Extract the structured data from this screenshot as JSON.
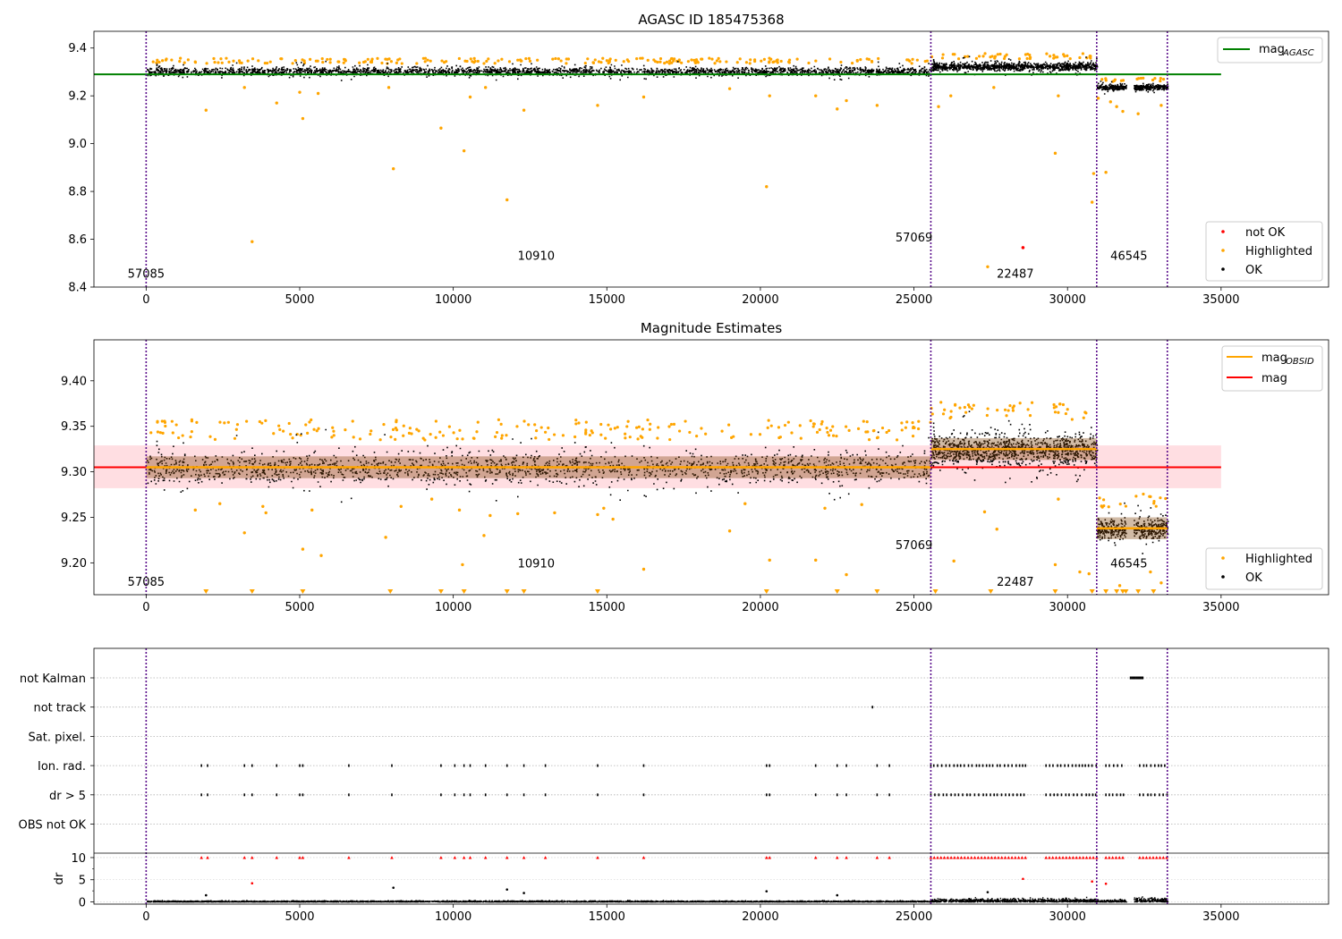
{
  "chart_data": [
    {
      "type": "scatter",
      "title": "AGASC ID 185475368",
      "xlim": [
        -1700,
        38500
      ],
      "ylim": [
        8.4,
        9.47
      ],
      "xticks": [
        0,
        5000,
        10000,
        15000,
        20000,
        25000,
        30000,
        35000
      ],
      "yticks": [
        8.4,
        8.6,
        8.8,
        9.0,
        9.2,
        9.4
      ],
      "ytick_labels": [
        "8.4",
        "8.6",
        "8.8",
        "9.0",
        "9.2",
        "9.4"
      ],
      "obsid_boundaries": [
        0,
        25550,
        30950,
        33250
      ],
      "obsid_annotations": [
        {
          "x": 0,
          "y": 8.44,
          "label": "57085"
        },
        {
          "x": 12700,
          "y": 8.515,
          "label": "10910"
        },
        {
          "x": 25000,
          "y": 8.59,
          "label": "57069"
        },
        {
          "x": 28300,
          "y": 8.44,
          "label": "22487"
        },
        {
          "x": 32000,
          "y": 8.515,
          "label": "46545"
        }
      ],
      "reference_line": {
        "name": "mag_AGASC",
        "y": 9.29,
        "x": [
          -1700,
          35000
        ]
      },
      "series": [
        {
          "name": "not OK",
          "points": [
            [
              28550,
              8.565
            ]
          ]
        },
        {
          "name": "Highlighted",
          "points": [
            [
              1950,
              9.14
            ],
            [
              3200,
              9.235
            ],
            [
              3450,
              8.59
            ],
            [
              4250,
              9.17
            ],
            [
              5000,
              9.215
            ],
            [
              5100,
              9.105
            ],
            [
              5600,
              9.21
            ],
            [
              7900,
              9.235
            ],
            [
              8050,
              8.895
            ],
            [
              9600,
              9.065
            ],
            [
              10350,
              8.97
            ],
            [
              10550,
              9.195
            ],
            [
              11050,
              9.235
            ],
            [
              11750,
              8.765
            ],
            [
              12300,
              9.14
            ],
            [
              14700,
              9.16
            ],
            [
              16200,
              9.195
            ],
            [
              19000,
              9.23
            ],
            [
              20200,
              8.82
            ],
            [
              20300,
              9.2
            ],
            [
              21800,
              9.2
            ],
            [
              22500,
              9.145
            ],
            [
              22800,
              9.18
            ],
            [
              23800,
              9.16
            ],
            [
              25800,
              9.155
            ],
            [
              26200,
              9.2
            ],
            [
              27400,
              8.485
            ],
            [
              27600,
              9.235
            ],
            [
              29600,
              8.96
            ],
            [
              29700,
              9.2
            ],
            [
              30800,
              8.755
            ],
            [
              30850,
              8.875
            ],
            [
              31000,
              9.19
            ],
            [
              31250,
              8.88
            ],
            [
              31400,
              9.175
            ],
            [
              31600,
              9.155
            ],
            [
              31800,
              9.135
            ],
            [
              32300,
              9.125
            ],
            [
              33050,
              9.16
            ]
          ]
        },
        {
          "name": "OK",
          "segments": [
            {
              "x": [
                0,
                25550
              ],
              "y_center": 9.305,
              "y_spread": 0.025
            },
            {
              "x": [
                25550,
                30950
              ],
              "y_center": 9.325,
              "y_spread": 0.025
            },
            {
              "x": [
                30950,
                31900
              ],
              "y_center": 9.238,
              "y_spread": 0.018
            },
            {
              "x": [
                32150,
                33250
              ],
              "y_center": 9.238,
              "y_spread": 0.018
            }
          ]
        }
      ],
      "legend_lines": [
        {
          "name": "mag",
          "sub": "AGASC",
          "color": "#008000"
        }
      ],
      "legend_points": [
        {
          "name": "not OK",
          "color": "#ff0000"
        },
        {
          "name": "Highlighted",
          "color": "#ffa500"
        },
        {
          "name": "OK",
          "color": "#000000"
        }
      ]
    },
    {
      "type": "scatter",
      "title": "Magnitude Estimates",
      "xlim": [
        -1700,
        38500
      ],
      "ylim": [
        9.165,
        9.445
      ],
      "xticks": [
        0,
        5000,
        10000,
        15000,
        20000,
        25000,
        30000,
        35000
      ],
      "yticks": [
        9.2,
        9.25,
        9.3,
        9.35,
        9.4
      ],
      "ytick_labels": [
        "9.20",
        "9.25",
        "9.30",
        "9.35",
        "9.40"
      ],
      "obsid_boundaries": [
        0,
        25550,
        30950,
        33250
      ],
      "obsid_annotations": [
        {
          "x": 0,
          "y": 9.175,
          "label": "57085"
        },
        {
          "x": 12700,
          "y": 9.195,
          "label": "10910"
        },
        {
          "x": 25000,
          "y": 9.215,
          "label": "57069"
        },
        {
          "x": 28300,
          "y": 9.175,
          "label": "22487"
        },
        {
          "x": 32000,
          "y": 9.195,
          "label": "46545"
        }
      ],
      "mag_line": {
        "name": "mag",
        "y": 9.305,
        "band": [
          9.282,
          9.329
        ],
        "x": [
          -1700,
          35000
        ]
      },
      "obsid_mags": [
        {
          "x": [
            0,
            25550
          ],
          "y": 9.305
        },
        {
          "x": [
            25550,
            30950
          ],
          "y": 9.325
        },
        {
          "x": [
            30950,
            33250
          ],
          "y": 9.238
        }
      ],
      "series": [
        {
          "name": "Highlighted",
          "points": [
            [
              1600,
              9.258
            ],
            [
              2400,
              9.265
            ],
            [
              3200,
              9.233
            ],
            [
              3800,
              9.262
            ],
            [
              3900,
              9.255
            ],
            [
              5100,
              9.215
            ],
            [
              5400,
              9.258
            ],
            [
              5700,
              9.208
            ],
            [
              7800,
              9.228
            ],
            [
              8300,
              9.262
            ],
            [
              9300,
              9.27
            ],
            [
              10200,
              9.258
            ],
            [
              10300,
              9.198
            ],
            [
              11000,
              9.23
            ],
            [
              11200,
              9.252
            ],
            [
              12100,
              9.254
            ],
            [
              13300,
              9.255
            ],
            [
              14700,
              9.253
            ],
            [
              14900,
              9.26
            ],
            [
              15200,
              9.248
            ],
            [
              16200,
              9.193
            ],
            [
              19000,
              9.235
            ],
            [
              19500,
              9.265
            ],
            [
              20300,
              9.203
            ],
            [
              21800,
              9.203
            ],
            [
              22100,
              9.26
            ],
            [
              22800,
              9.187
            ],
            [
              23300,
              9.264
            ],
            [
              26300,
              9.202
            ],
            [
              27300,
              9.256
            ],
            [
              27700,
              9.237
            ],
            [
              29600,
              9.198
            ],
            [
              29700,
              9.27
            ],
            [
              30400,
              9.19
            ],
            [
              30700,
              9.188
            ],
            [
              31700,
              9.175
            ],
            [
              32700,
              9.19
            ],
            [
              33050,
              9.178
            ]
          ]
        },
        {
          "name": "Highlighted (below range)",
          "x": [
            1950,
            3450,
            5100,
            7950,
            9600,
            10350,
            11750,
            12300,
            14700,
            20200,
            22500,
            23800,
            25700,
            27500,
            29600,
            30800,
            31250,
            31600,
            31800,
            31900,
            32300,
            32800
          ]
        },
        {
          "name": "OK",
          "segments": [
            {
              "x": [
                0,
                25550
              ],
              "y_center": 9.305,
              "y_spread": 0.025
            },
            {
              "x": [
                25550,
                30950
              ],
              "y_center": 9.325,
              "y_spread": 0.025
            },
            {
              "x": [
                30950,
                31900
              ],
              "y_center": 9.238,
              "y_spread": 0.018
            },
            {
              "x": [
                32150,
                33250
              ],
              "y_center": 9.238,
              "y_spread": 0.018
            }
          ]
        }
      ],
      "legend_lines": [
        {
          "name": "mag",
          "sub": "OBSID",
          "color": "#ffa500"
        },
        {
          "name": "mag",
          "sub": "",
          "color": "#ff0000"
        }
      ],
      "legend_points": [
        {
          "name": "Highlighted",
          "color": "#ffa500"
        },
        {
          "name": "OK",
          "color": "#000000"
        }
      ]
    },
    {
      "type": "scatter",
      "title": "",
      "xlim": [
        -1700,
        38500
      ],
      "xticks": [
        0,
        5000,
        10000,
        15000,
        20000,
        25000,
        30000,
        35000
      ],
      "obsid_boundaries": [
        0,
        25550,
        30950,
        33250
      ],
      "flag_rows": [
        "not Kalman",
        "not track",
        "Sat. pixel.",
        "Ion. rad.",
        "dr > 5",
        "OBS not OK"
      ],
      "flag_points": {
        "not Kalman": [
          [
            32050,
            32450
          ]
        ],
        "not track": [
          23650
        ],
        "Sat. pixel.": [],
        "Ion. rad.": [
          1800,
          2000,
          3200,
          3450,
          4250,
          5000,
          5100,
          6600,
          8000,
          9600,
          10050,
          10350,
          10550,
          11050,
          11750,
          12300,
          13000,
          14700,
          16200,
          20200,
          20300,
          21800,
          22500,
          22800,
          23800,
          24200
        ],
        "dr > 5": [
          1800,
          2000,
          3200,
          3450,
          4250,
          5000,
          5100,
          6600,
          8000,
          9600,
          10050,
          10350,
          10550,
          11050,
          11750,
          12300,
          13000,
          14700,
          16200,
          20200,
          20300,
          21800,
          22500,
          22800,
          23800,
          24200
        ]
      },
      "flag_dense_ranges": [
        [
          25550,
          28650
        ],
        [
          29300,
          30950
        ],
        [
          31250,
          31900
        ],
        [
          32350,
          33250
        ]
      ],
      "dr_axis": {
        "ylabel": "dr",
        "ylim": [
          -0.5,
          11
        ],
        "yticks": [
          0,
          5,
          10
        ],
        "clip": 10
      },
      "dr_sparse": [
        [
          1950,
          1.5
        ],
        [
          3450,
          4.2
        ],
        [
          8050,
          3.2
        ],
        [
          11750,
          2.8
        ],
        [
          12300,
          2
        ],
        [
          20200,
          2.4
        ],
        [
          22500,
          1.5
        ],
        [
          27400,
          2.2
        ],
        [
          28550,
          5.2
        ],
        [
          30800,
          4.6
        ],
        [
          31250,
          4.1
        ]
      ]
    }
  ]
}
